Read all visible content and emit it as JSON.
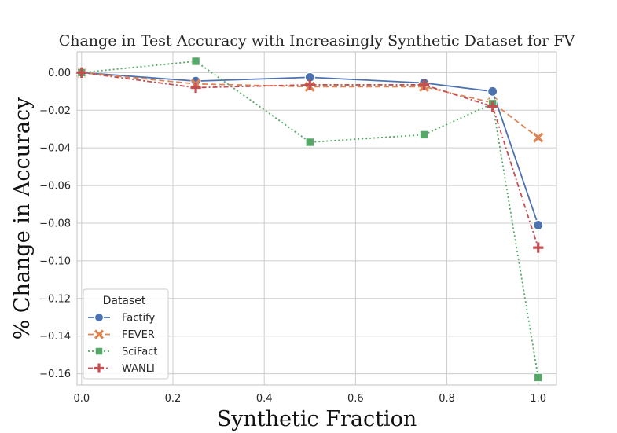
{
  "chart_data": {
    "type": "line",
    "title": "Change in Test Accuracy with Increasingly Synthetic Dataset for FV",
    "xlabel": "Synthetic Fraction",
    "ylabel": "% Change in Accuracy",
    "xlim": [
      -0.01,
      1.04
    ],
    "ylim": [
      -0.166,
      0.011
    ],
    "xticks": [
      0.0,
      0.2,
      0.4,
      0.6,
      0.8,
      1.0
    ],
    "xtick_labels": [
      "0.0",
      "0.2",
      "0.4",
      "0.6",
      "0.8",
      "1.0"
    ],
    "yticks": [
      0.0,
      -0.02,
      -0.04,
      -0.06,
      -0.08,
      -0.1,
      -0.12,
      -0.14,
      -0.16
    ],
    "ytick_labels": [
      "0.00",
      "−0.02",
      "−0.04",
      "−0.06",
      "−0.08",
      "−0.10",
      "−0.12",
      "−0.14",
      "−0.16"
    ],
    "grid": true,
    "legend": {
      "title": "Dataset",
      "position": "lower-left"
    },
    "x": [
      0.0,
      0.25,
      0.5,
      0.75,
      0.9,
      1.0
    ],
    "series": [
      {
        "name": "Factify",
        "color": "#4c72b0",
        "dash": "solid",
        "marker": "circle",
        "values": [
          0.0,
          -0.0045,
          -0.0025,
          -0.0055,
          -0.01,
          -0.081
        ]
      },
      {
        "name": "FEVER",
        "color": "#dd8452",
        "dash": "dashed",
        "marker": "x",
        "values": [
          0.0,
          -0.006,
          -0.0075,
          -0.0075,
          -0.016,
          -0.0345
        ]
      },
      {
        "name": "SciFact",
        "color": "#55a868",
        "dash": "dotted",
        "marker": "square",
        "values": [
          0.0,
          0.006,
          -0.037,
          -0.033,
          -0.0165,
          -0.162
        ]
      },
      {
        "name": "WANLI",
        "color": "#c44e52",
        "dash": "dashdot",
        "marker": "plus",
        "values": [
          0.0,
          -0.008,
          -0.0065,
          -0.0065,
          -0.018,
          -0.093
        ]
      }
    ]
  }
}
